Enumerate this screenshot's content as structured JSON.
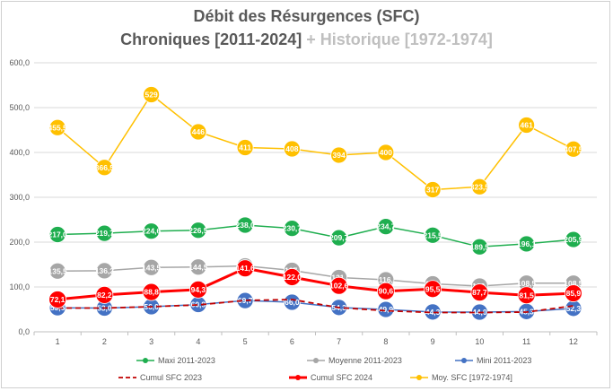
{
  "title": "Débit des Résurgences (SFC)",
  "subtitle_main": "Chroniques [2011-2024]",
  "subtitle_hist": "+ Historique [1972-1974]",
  "chart_data": {
    "type": "line",
    "x": [
      1,
      2,
      3,
      4,
      5,
      6,
      7,
      8,
      9,
      10,
      11,
      12
    ],
    "ylim": [
      0,
      600
    ],
    "yticks": [
      "0,0",
      "100,0",
      "200,0",
      "300,0",
      "400,0",
      "500,0",
      "600,0"
    ],
    "grid": true,
    "legend_position": "bottom",
    "series": [
      {
        "name": "Maxi 2011-2023",
        "color": "#1fae4f",
        "style": "marker-line",
        "values": [
          217.0,
          219.7,
          224.6,
          226.5,
          238.0,
          230.7,
          209.7,
          234.7,
          215.5,
          189.5,
          196.1,
          205.9
        ],
        "labels": [
          "217,0",
          "219,7",
          "224,6",
          "226,5",
          "238,0",
          "230,7",
          "209,7",
          "234,7",
          "215,5",
          "189,5",
          "196,1",
          "205,9"
        ]
      },
      {
        "name": "Moyenne 2011-2023",
        "color": "#a6a6a6",
        "style": "marker-line",
        "values": [
          135.5,
          136.2,
          143.5,
          144.5,
          147.0,
          137.0,
          121.0,
          116.0,
          107.0,
          102.0,
          108.5,
          108.5
        ],
        "labels": [
          "135,5",
          "136,2",
          "143,5",
          "144,5",
          "147,",
          "137,",
          "121,",
          "116,",
          "107,",
          "102,",
          "108,5",
          "108,5"
        ]
      },
      {
        "name": "Mini 2011-2023",
        "color": "#4472c4",
        "style": "marker-line",
        "values": [
          53.6,
          53.0,
          56.0,
          60.9,
          69.7,
          66.0,
          54.3,
          49.9,
          44.3,
          44.0,
          45.3,
          52.3
        ],
        "labels": [
          "53,6",
          "53,0",
          "56,0",
          "60,9",
          "69,7",
          "66,0",
          "54,3",
          "49,9",
          "44,3",
          "44,0",
          "45,3",
          "52,3"
        ]
      },
      {
        "name": "Cumul SFC 2023",
        "color": "#c00000",
        "style": "dashed",
        "values": [
          53.0,
          53.0,
          56.0,
          60.0,
          70.0,
          72.0,
          54.0,
          47.0,
          43.0,
          43.0,
          44.0,
          58.0
        ],
        "labels": []
      },
      {
        "name": "Cumul SFC 2024",
        "color": "#ff0000",
        "style": "marker-line-thick",
        "values": [
          72.1,
          82.2,
          88.8,
          94.3,
          141.6,
          122.0,
          102.6,
          90.6,
          95.5,
          87.7,
          81.5,
          85.9
        ],
        "labels": [
          "72,1",
          "82,2",
          "88,8",
          "94,3",
          "141,6",
          "122,0",
          "102,6",
          "90,6",
          "95,5",
          "87,7",
          "81,5",
          "85,9"
        ]
      },
      {
        "name": "Moy. SFC [1972-1974]",
        "color": "#ffc000",
        "style": "marker-line",
        "values": [
          455.5,
          366.5,
          529,
          446,
          411,
          408,
          394,
          400,
          317,
          323.5,
          461,
          407.5
        ],
        "labels": [
          "455,5",
          "366,5",
          "529",
          "446",
          "411",
          "408",
          "394",
          "400",
          "317",
          "323,5",
          "461",
          "407,5"
        ]
      }
    ],
    "legend": [
      {
        "name": "Maxi 2011-2023",
        "color": "#1fae4f",
        "style": "marker-line"
      },
      {
        "name": "Moyenne 2011-2023",
        "color": "#a6a6a6",
        "style": "marker-line"
      },
      {
        "name": "Mini 2011-2023",
        "color": "#4472c4",
        "style": "marker-line"
      },
      {
        "name": "Cumul SFC 2023",
        "color": "#c00000",
        "style": "dashed"
      },
      {
        "name": "Cumul SFC 2024",
        "color": "#ff0000",
        "style": "marker-line-thick"
      },
      {
        "name": "Moy. SFC [1972-1974]",
        "color": "#ffc000",
        "style": "marker-line"
      }
    ]
  }
}
